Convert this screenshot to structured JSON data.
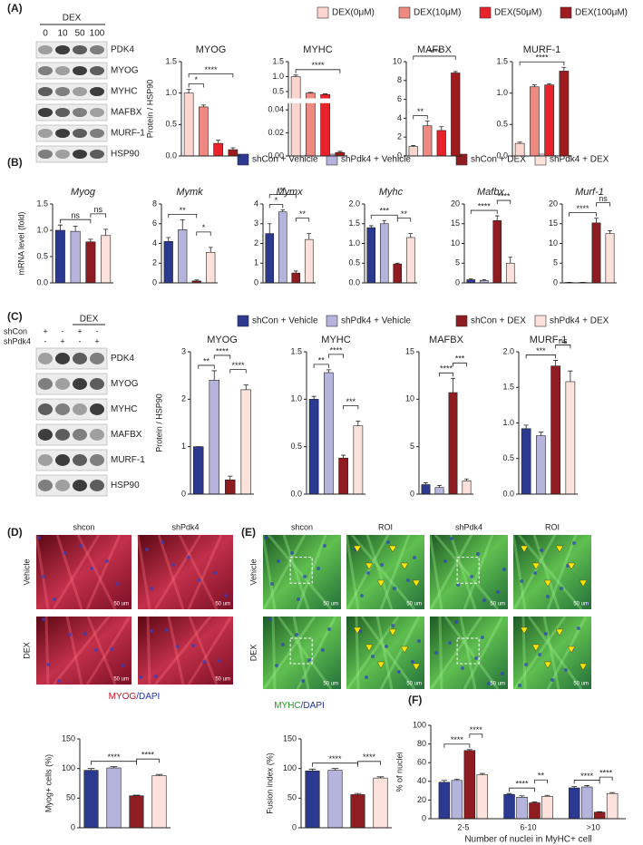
{
  "chart_data": [
    {
      "type": "bar",
      "title": "MYOG",
      "ylabel": "Protein / HSP90",
      "ylim": [
        0,
        1.5
      ],
      "yticks": [
        {
          "value": 0,
          "label": "0.0"
        },
        0.5,
        {
          "value": 1,
          "label": "1.0"
        },
        1.5
      ],
      "values": [
        1.0,
        0.78,
        0.2,
        0.1
      ],
      "errors": [
        0.06,
        0.03,
        0.05,
        0.03
      ],
      "colors": [
        "#fcd5cf",
        "#ef8a83",
        "#e8232b",
        "#9e1b20"
      ],
      "annotations": [
        {
          "text": "*",
          "between": [
            0,
            1
          ]
        },
        {
          "text": "****",
          "between": [
            0,
            3
          ]
        }
      ]
    },
    {
      "type": "bar",
      "title": "MYHC",
      "ylim": [
        0,
        1.5
      ],
      "axis_break": [
        0.045,
        0.3
      ],
      "yticks": [
        {
          "value": 0,
          "label": "0.00"
        },
        0.02,
        0.04,
        0.5,
        {
          "value": 1,
          "label": "1.0"
        },
        1.5
      ],
      "values": [
        1.0,
        0.45,
        0.4,
        0.003
      ],
      "errors": [
        0.05,
        0.02,
        0.02,
        0.001
      ],
      "colors": [
        "#fcd5cf",
        "#ef8a83",
        "#e8232b",
        "#9e1b20"
      ],
      "annotations": [
        {
          "text": "****",
          "between": [
            0,
            3
          ]
        }
      ]
    },
    {
      "type": "bar",
      "title": "MAFBX",
      "ylim": [
        0,
        10
      ],
      "yticks": [
        0,
        2,
        4,
        6,
        8,
        10
      ],
      "values": [
        1.0,
        3.2,
        2.7,
        8.8
      ],
      "errors": [
        0.1,
        0.5,
        0.4,
        0.15
      ],
      "colors": [
        "#fcd5cf",
        "#ef8a83",
        "#e8232b",
        "#9e1b20"
      ],
      "annotations": [
        {
          "text": "**",
          "between": [
            0,
            1
          ]
        },
        {
          "text": "****",
          "between": [
            0,
            3
          ]
        }
      ]
    },
    {
      "type": "bar",
      "title": "MURF-1",
      "ylim": [
        0,
        1.5
      ],
      "yticks": [
        {
          "value": 0,
          "label": "0.0"
        },
        0.5,
        {
          "value": 1,
          "label": "1.0"
        },
        1.5
      ],
      "values": [
        0.2,
        1.1,
        1.13,
        1.35
      ],
      "errors": [
        0.02,
        0.03,
        0.02,
        0.06
      ],
      "colors": [
        "#fcd5cf",
        "#ef8a83",
        "#e8232b",
        "#9e1b20"
      ],
      "annotations": [
        {
          "text": "****",
          "between": [
            0,
            3
          ]
        }
      ]
    },
    {
      "type": "bar",
      "title": "Myog",
      "title_style": "italic",
      "ylabel": "mRNA level (fold)",
      "ylim": [
        0,
        1.5
      ],
      "yticks": [
        {
          "value": 0,
          "label": "0.0"
        },
        0.5,
        {
          "value": 1,
          "label": "1.0"
        },
        1.5
      ],
      "values": [
        1.0,
        0.98,
        0.78,
        0.9
      ],
      "errors": [
        0.1,
        0.1,
        0.05,
        0.12
      ],
      "colors": [
        "#2b3990",
        "#b4b4dd",
        "#8f1c20",
        "#fde2dc"
      ],
      "annotations": [
        {
          "text": "ns",
          "between": [
            0,
            2
          ]
        },
        {
          "text": "ns",
          "between": [
            2,
            3
          ]
        }
      ]
    },
    {
      "type": "bar",
      "title": "Mymk",
      "title_style": "italic",
      "ylim": [
        0,
        8
      ],
      "yticks": [
        0,
        2,
        4,
        6,
        8
      ],
      "values": [
        4.2,
        5.4,
        0.2,
        3.1
      ],
      "errors": [
        0.4,
        1.0,
        0.1,
        0.5
      ],
      "colors": [
        "#2b3990",
        "#b4b4dd",
        "#8f1c20",
        "#fde2dc"
      ],
      "annotations": [
        {
          "text": "**",
          "between": [
            0,
            2
          ]
        },
        {
          "text": "*",
          "between": [
            2,
            3
          ]
        }
      ]
    },
    {
      "type": "bar",
      "title": "Mymx",
      "title_style": "italic",
      "ylim": [
        0,
        4
      ],
      "yticks": [
        0,
        1,
        2,
        3,
        4
      ],
      "values": [
        2.5,
        3.6,
        0.5,
        2.2
      ],
      "errors": [
        0.5,
        0.1,
        0.1,
        0.3
      ],
      "colors": [
        "#2b3990",
        "#b4b4dd",
        "#8f1c20",
        "#fde2dc"
      ],
      "annotations": [
        {
          "text": "*",
          "between": [
            0,
            1
          ]
        },
        {
          "text": "**",
          "between": [
            0,
            2
          ]
        },
        {
          "text": "**",
          "between": [
            2,
            3
          ]
        }
      ]
    },
    {
      "type": "bar",
      "title": "Myhc",
      "title_style": "italic",
      "ylim": [
        0,
        2
      ],
      "yticks": [
        {
          "value": 0,
          "label": "0.0"
        },
        0.5,
        {
          "value": 1,
          "label": "1.0"
        },
        1.5,
        {
          "value": 2,
          "label": "2.0"
        }
      ],
      "values": [
        1.4,
        1.5,
        0.48,
        1.15
      ],
      "errors": [
        0.05,
        0.08,
        0.02,
        0.1
      ],
      "colors": [
        "#2b3990",
        "#b4b4dd",
        "#8f1c20",
        "#fde2dc"
      ],
      "annotations": [
        {
          "text": "***",
          "between": [
            0,
            2
          ]
        },
        {
          "text": "**",
          "between": [
            2,
            3
          ]
        }
      ]
    },
    {
      "type": "bar",
      "title": "Mafbx",
      "title_style": "italic",
      "ylim": [
        0,
        20
      ],
      "yticks": [
        0,
        5,
        10,
        15,
        20
      ],
      "values": [
        0.8,
        0.6,
        15.8,
        5
      ],
      "errors": [
        0.2,
        0.2,
        1.2,
        1.5
      ],
      "colors": [
        "#2b3990",
        "#b4b4dd",
        "#8f1c20",
        "#fde2dc"
      ],
      "annotations": [
        {
          "text": "****",
          "between": [
            0,
            2
          ]
        },
        {
          "text": "****",
          "between": [
            2,
            3
          ]
        }
      ]
    },
    {
      "type": "bar",
      "title": "Murf-1",
      "title_style": "italic",
      "ylim": [
        0,
        20
      ],
      "yticks": [
        0,
        5,
        10,
        15,
        20
      ],
      "values": [
        0.1,
        0.1,
        15.2,
        12.5
      ],
      "errors": [
        0.05,
        0.05,
        1.2,
        0.7
      ],
      "colors": [
        "#2b3990",
        "#b4b4dd",
        "#8f1c20",
        "#fde2dc"
      ],
      "annotations": [
        {
          "text": "****",
          "between": [
            0,
            2
          ]
        },
        {
          "text": "ns",
          "between": [
            2,
            3
          ]
        }
      ]
    },
    {
      "type": "bar",
      "title": "MYOG",
      "ylabel": "Protein / HSP90",
      "ylim": [
        0,
        3
      ],
      "yticks": [
        0,
        1,
        2,
        3
      ],
      "values": [
        1,
        2.4,
        0.3,
        2.2
      ],
      "errors": [
        0,
        0.2,
        0.08,
        0.1
      ],
      "colors": [
        "#2b3990",
        "#b4b4dd",
        "#8f1c20",
        "#fde2dc"
      ],
      "annotations": [
        {
          "text": "**",
          "between": [
            0,
            1
          ]
        },
        {
          "text": "****",
          "between": [
            1,
            2
          ]
        },
        {
          "text": "****",
          "between": [
            2,
            3
          ]
        }
      ]
    },
    {
      "type": "bar",
      "title": "MYHC",
      "ylim": [
        0,
        1.5
      ],
      "yticks": [
        {
          "value": 0,
          "label": "0.0"
        },
        0.5,
        {
          "value": 1,
          "label": "1.0"
        },
        1.5
      ],
      "values": [
        1.0,
        1.28,
        0.38,
        0.72
      ],
      "errors": [
        0.03,
        0.03,
        0.03,
        0.05
      ],
      "colors": [
        "#2b3990",
        "#b4b4dd",
        "#8f1c20",
        "#fde2dc"
      ],
      "annotations": [
        {
          "text": "**",
          "between": [
            0,
            1
          ]
        },
        {
          "text": "****",
          "between": [
            1,
            2
          ]
        },
        {
          "text": "***",
          "between": [
            2,
            3
          ]
        }
      ]
    },
    {
      "type": "bar",
      "title": "MAFBX",
      "ylim": [
        0,
        15
      ],
      "yticks": [
        0,
        5,
        10,
        15
      ],
      "values": [
        1,
        0.7,
        10.7,
        1.4
      ],
      "errors": [
        0.2,
        0.2,
        1.5,
        0.2
      ],
      "colors": [
        "#2b3990",
        "#b4b4dd",
        "#8f1c20",
        "#fde2dc"
      ],
      "annotations": [
        {
          "text": "****",
          "between": [
            1,
            2
          ]
        },
        {
          "text": "***",
          "between": [
            2,
            3
          ]
        }
      ]
    },
    {
      "type": "bar",
      "title": "MURF-1",
      "ylim": [
        0,
        2
      ],
      "yticks": [
        {
          "value": 0,
          "label": "0.0"
        },
        0.5,
        {
          "value": 1,
          "label": "1.0"
        },
        1.5,
        {
          "value": 2,
          "label": "2.0"
        }
      ],
      "values": [
        0.92,
        0.82,
        1.8,
        1.58
      ],
      "errors": [
        0.05,
        0.05,
        0.08,
        0.15
      ],
      "colors": [
        "#2b3990",
        "#b4b4dd",
        "#8f1c20",
        "#fde2dc"
      ],
      "annotations": [
        {
          "text": "***",
          "between": [
            0,
            2
          ]
        },
        {
          "text": "ns",
          "between": [
            2,
            3
          ]
        }
      ]
    },
    {
      "type": "bar",
      "ylabel": "Myog+ cells (%)",
      "ylim": [
        0,
        150
      ],
      "yticks": [
        0,
        50,
        100,
        150
      ],
      "values": [
        97,
        101,
        54,
        88
      ],
      "errors": [
        3,
        2,
        1,
        2
      ],
      "colors": [
        "#2b3990",
        "#b4b4dd",
        "#8f1c20",
        "#fde2dc"
      ],
      "annotations": [
        {
          "text": "****",
          "between": [
            0,
            2
          ]
        },
        {
          "text": "****",
          "between": [
            2,
            3
          ]
        }
      ]
    },
    {
      "type": "bar",
      "ylabel": "Fusion index (%)",
      "ylim": [
        0,
        150
      ],
      "yticks": [
        0,
        50,
        100,
        150
      ],
      "values": [
        96,
        97,
        56,
        84
      ],
      "errors": [
        3,
        3,
        2,
        2
      ],
      "colors": [
        "#2b3990",
        "#b4b4dd",
        "#8f1c20",
        "#fde2dc"
      ],
      "annotations": [
        {
          "text": "****",
          "between": [
            0,
            2
          ]
        },
        {
          "text": "****",
          "between": [
            2,
            3
          ]
        }
      ]
    },
    {
      "type": "bar",
      "ylabel": "% of nuclei",
      "xlabel": "Number of nuclei in MyHC+ cell",
      "categories": [
        "2-5",
        "6-10",
        ">10"
      ],
      "ylim": [
        0,
        100
      ],
      "yticks": [
        0,
        20,
        40,
        60,
        80,
        100
      ],
      "series": [
        {
          "color": "#2b3990",
          "values": [
            39,
            26,
            33
          ],
          "errors": [
            2,
            1,
            1.5
          ]
        },
        {
          "color": "#b4b4dd",
          "values": [
            41,
            23,
            34
          ],
          "errors": [
            1.5,
            1.5,
            1.5
          ]
        },
        {
          "color": "#8f1c20",
          "values": [
            73,
            17,
            7
          ],
          "errors": [
            1,
            1,
            0.5
          ]
        },
        {
          "color": "#fde2dc",
          "values": [
            47,
            24,
            27
          ],
          "errors": [
            1.5,
            1,
            1
          ]
        }
      ],
      "annotations": [
        {
          "text": "****",
          "group": 0,
          "between": [
            0,
            2
          ]
        },
        {
          "text": "****",
          "group": 0,
          "between": [
            2,
            3
          ]
        },
        {
          "text": "****",
          "group": 1,
          "between": [
            0,
            2
          ]
        },
        {
          "text": "**",
          "group": 1,
          "between": [
            2,
            3
          ]
        },
        {
          "text": "****",
          "group": 2,
          "between": [
            0,
            2
          ]
        },
        {
          "text": "****",
          "group": 2,
          "between": [
            2,
            3
          ]
        }
      ]
    }
  ],
  "figure": {
    "A": {
      "label": "(A)",
      "treatment": "DEX",
      "doses": [
        "0",
        "10",
        "50",
        "100"
      ],
      "bands": [
        "PDK4",
        "MYOG",
        "MYHC",
        "MAFBX",
        "MURF-1",
        "HSP90"
      ],
      "legend": [
        {
          "name": "DEX(0μM)",
          "color": "#fcd5cf"
        },
        {
          "name": "DEX(10μM)",
          "color": "#ef8a83"
        },
        {
          "name": "DEX(50μM)",
          "color": "#e8232b"
        },
        {
          "name": "DEX(100μM)",
          "color": "#9e1b20"
        }
      ]
    },
    "B": {
      "label": "(B)",
      "legend": [
        {
          "name": "shCon + Vehicle",
          "color": "#2b3990"
        },
        {
          "name": "shPdk4 + Vehicle",
          "color": "#b4b4dd"
        },
        {
          "name": "shCon + DEX",
          "color": "#8f1c20"
        },
        {
          "name": "shPdk4 + DEX",
          "color": "#fde2dc"
        }
      ]
    },
    "C": {
      "label": "(C)",
      "treatment": "DEX",
      "lanes": [
        "shCon",
        "shPdk4"
      ],
      "marks": [
        [
          "+",
          "-",
          "+",
          "-"
        ],
        [
          "-",
          "+",
          "-",
          "+"
        ]
      ],
      "bands": [
        "PDK4",
        "MYOG",
        "MYHC",
        "MAFBX",
        "MURF-1",
        "HSP90"
      ],
      "legend": [
        {
          "name": "shCon + Vehicle",
          "color": "#2b3990"
        },
        {
          "name": "shPdk4 + Vehicle",
          "color": "#b4b4dd"
        },
        {
          "name": "shCon + DEX",
          "color": "#8f1c20"
        },
        {
          "name": "shPdk4 + DEX",
          "color": "#fde2dc"
        }
      ]
    },
    "D": {
      "label": "(D)",
      "columns": [
        "shcon",
        "shPdk4"
      ],
      "rows": [
        "Vehicle",
        "DEX"
      ],
      "stain": [
        "MYOG",
        "/DAPI"
      ],
      "scale": "50 um"
    },
    "E": {
      "label": "(E)",
      "columns": [
        "shcon",
        "ROI",
        "shPdk4",
        "ROI"
      ],
      "rows": [
        "Vehicle",
        "DEX"
      ],
      "stain": [
        "MYHC",
        "/DAPI"
      ],
      "scale": "50 um"
    },
    "F": {
      "label": "(F)"
    }
  }
}
